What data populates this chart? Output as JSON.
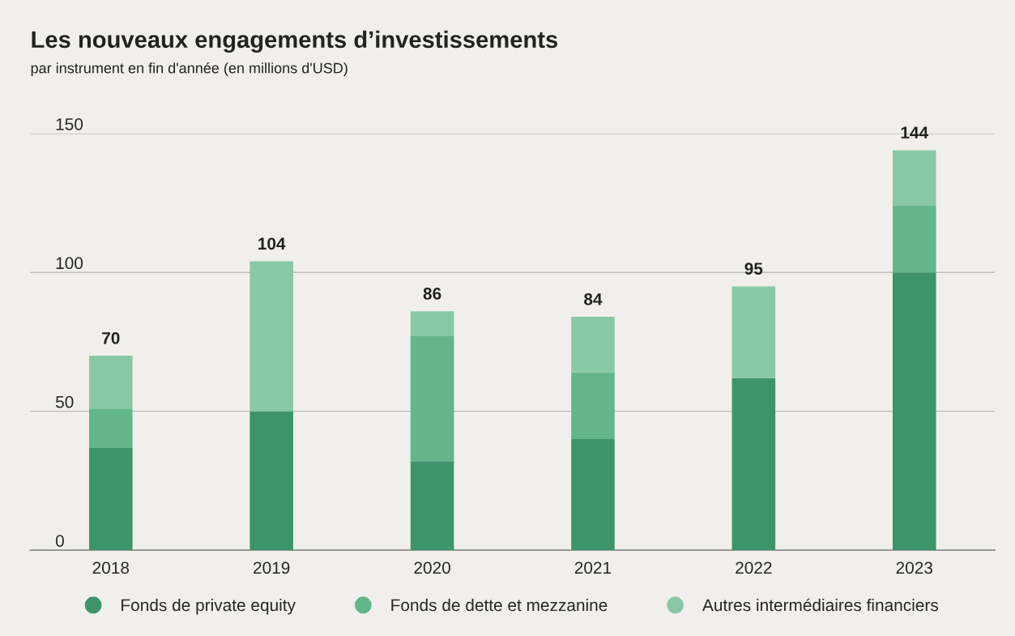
{
  "chart_data": {
    "type": "bar",
    "title": "Les nouveaux engagements d’investissements",
    "subtitle": "par instrument en fin d'année (en millions d'USD)",
    "categories": [
      "2018",
      "2019",
      "2020",
      "2021",
      "2022",
      "2023"
    ],
    "stacked": true,
    "series": [
      {
        "name": "Fonds de private equity",
        "color": "#3d946b",
        "values": [
          37,
          50,
          32,
          40,
          62,
          100
        ]
      },
      {
        "name": "Fonds de dette et mezzanine",
        "color": "#62b68a",
        "values": [
          14,
          0,
          45,
          24,
          0,
          24
        ]
      },
      {
        "name": "Autres intermédiaires financiers",
        "color": "#88c8a5",
        "values": [
          19,
          54,
          9,
          20,
          33,
          20
        ]
      }
    ],
    "totals": [
      "70",
      "104",
      "86",
      "84",
      "95",
      "144"
    ],
    "ylim": [
      0,
      150
    ],
    "yticks": [
      0,
      50,
      100,
      150
    ],
    "grid": "y",
    "legend": "bottom"
  }
}
